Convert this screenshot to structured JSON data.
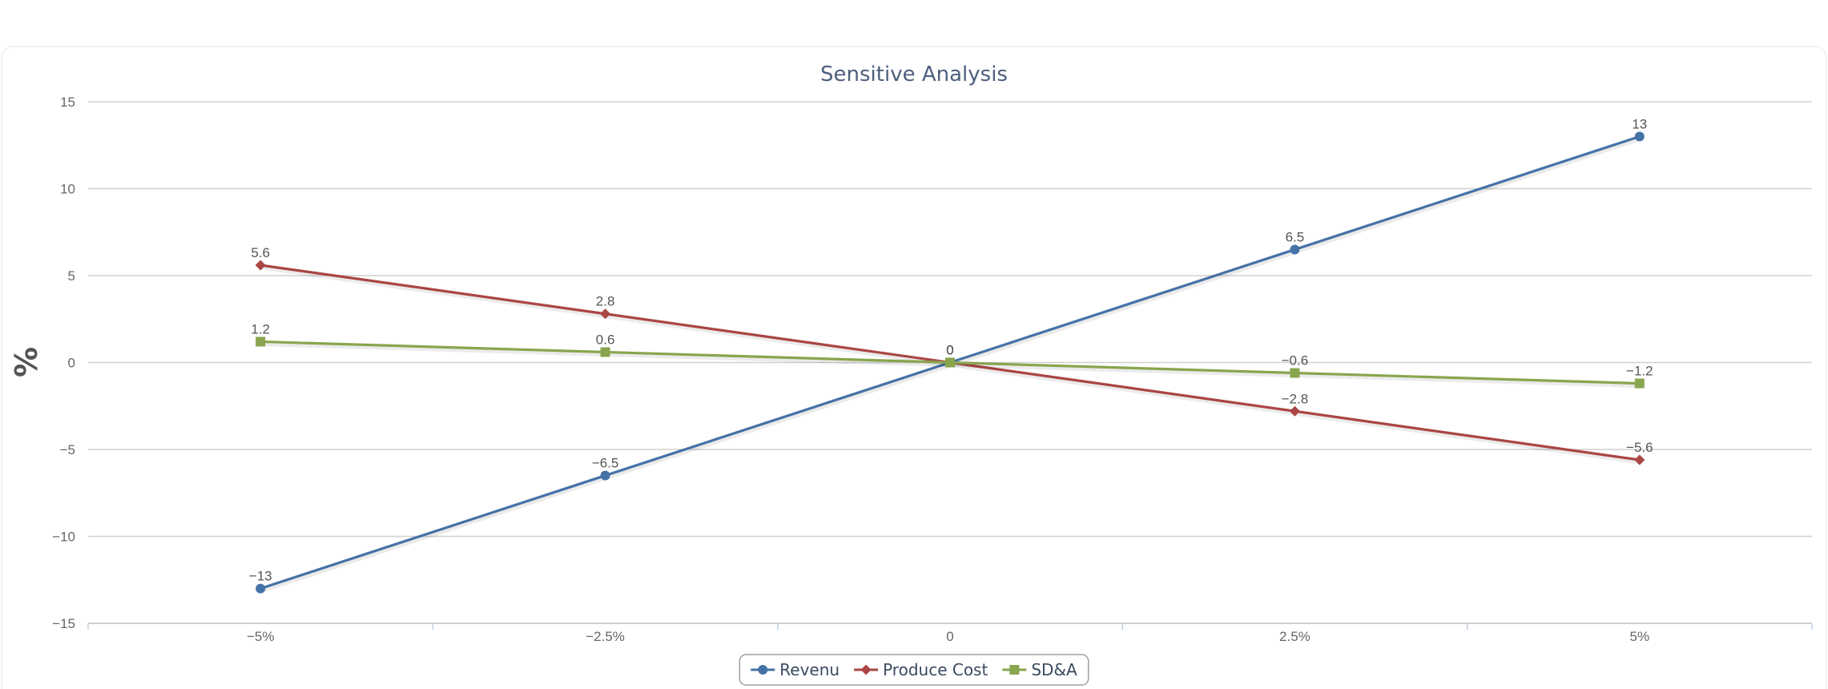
{
  "chart_data": {
    "type": "line",
    "title": "Sensitive Analysis",
    "ylabel": "%",
    "xlabel": "",
    "categories": [
      "-5%",
      "-2.5%",
      "0",
      "2.5%",
      "5%"
    ],
    "ylim": [
      -15,
      15
    ],
    "yticks": [
      -15,
      -10,
      -5,
      0,
      5,
      10,
      15
    ],
    "grid": true,
    "legend": "bottom-center",
    "series": [
      {
        "name": "Revenu",
        "values": [
          -13,
          -6.5,
          0,
          6.5,
          13
        ],
        "labels": [
          "-13",
          "-6.5",
          "0",
          "6.5",
          "13"
        ],
        "color": "#4572a7",
        "marker": "circle"
      },
      {
        "name": "Produce Cost",
        "values": [
          5.6,
          2.8,
          0,
          -2.8,
          -5.6
        ],
        "labels": [
          "5.6",
          "2.8",
          "0",
          "-2.8",
          "-5.6"
        ],
        "color": "#aa4643",
        "marker": "diamond"
      },
      {
        "name": "SD&A",
        "values": [
          1.2,
          0.6,
          0,
          -0.6,
          -1.2
        ],
        "labels": [
          "1.2",
          "0.6",
          "0",
          "-0.6",
          "-1.2"
        ],
        "color": "#89a54e",
        "marker": "square"
      }
    ]
  }
}
